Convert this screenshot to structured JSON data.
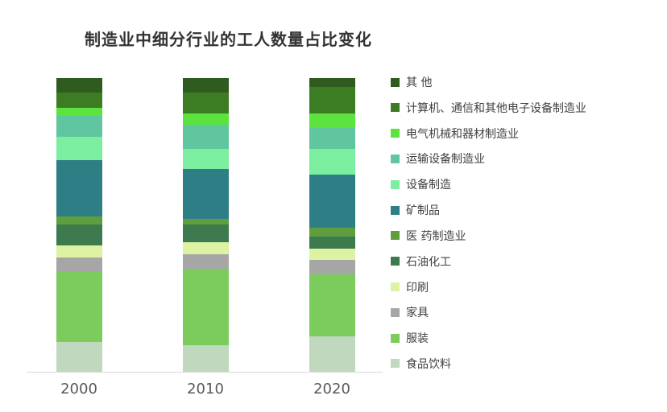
{
  "chart": {
    "title": "制造业中细分行业的工人数量占比变化"
  },
  "chart_data": {
    "type": "bar",
    "stacked": true,
    "unit": "%",
    "title": "制造业中细分行业的工人数量占比变化",
    "xlabel": "",
    "ylabel": "",
    "ylim": [
      0,
      100
    ],
    "grid": false,
    "legend_position": "right",
    "stack_order": "series listed top-of-stack first",
    "categories": [
      "2000",
      "2010",
      "2020"
    ],
    "series": [
      {
        "name": "其 他",
        "color": "#2f5c1e",
        "values": [
          5,
          5,
          3
        ]
      },
      {
        "name": "计算机、通信和其他电子设备制造业",
        "color": "#3c7d23",
        "values": [
          5,
          7,
          9
        ]
      },
      {
        "name": "电气机械和器材制造业",
        "color": "#5ce33e",
        "values": [
          3,
          4,
          5
        ]
      },
      {
        "name": "运输设备制造业",
        "color": "#5fc6a0",
        "values": [
          7,
          8,
          7
        ]
      },
      {
        "name": "设备制造",
        "color": "#7cee9f",
        "values": [
          8,
          7,
          9
        ]
      },
      {
        "name": "矿制品",
        "color": "#2e7f85",
        "values": [
          19,
          17,
          18
        ]
      },
      {
        "name": "医 药制造业",
        "color": "#5f9e3e",
        "values": [
          3,
          2,
          3
        ]
      },
      {
        "name": "石油化工",
        "color": "#3d7a4e",
        "values": [
          7,
          6,
          4
        ]
      },
      {
        "name": "印刷",
        "color": "#def2a3",
        "values": [
          4,
          4,
          4
        ]
      },
      {
        "name": "家具",
        "color": "#a6a6a6",
        "values": [
          5,
          5,
          5
        ]
      },
      {
        "name": "服装",
        "color": "#7ccb5d",
        "values": [
          24,
          26,
          21
        ]
      },
      {
        "name": "食品饮料",
        "color": "#c0d8bd",
        "values": [
          10,
          9,
          12
        ]
      }
    ]
  }
}
